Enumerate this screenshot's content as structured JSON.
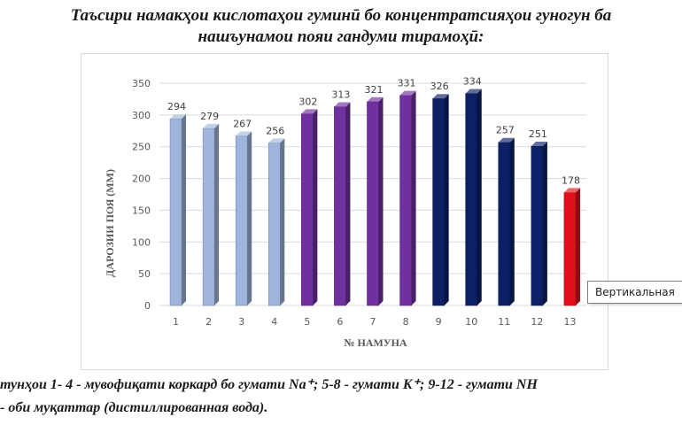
{
  "page": {
    "title_line1": "Таъсири намакҳои кислотаҳои гуминӣ бо концентратсияҳои гуногун ба",
    "title_line2": "нашъунамои пояи гандуми тирамоҳӣ:",
    "caption_line1": "тунҳои 1- 4 - мувофиқати коркард бо гумати Na⁺; 5-8 - гумати K⁺; 9-12 - гумати NH",
    "caption_line2": "- оби муқаттар (дистиллированная вода).",
    "tooltip": "Вертикальная"
  },
  "chart_data": {
    "type": "bar",
    "categories": [
      "1",
      "2",
      "3",
      "4",
      "5",
      "6",
      "7",
      "8",
      "9",
      "10",
      "11",
      "12",
      "13"
    ],
    "values": [
      294,
      279,
      267,
      256,
      302,
      313,
      321,
      331,
      326,
      334,
      257,
      251,
      178
    ],
    "data_labels": [
      "294",
      "279",
      "267",
      "256",
      "302",
      "313",
      "321",
      "331",
      "326",
      "334",
      "257",
      "251",
      "178"
    ],
    "bar_colors": [
      "#9fb5dc",
      "#9fb5dc",
      "#9fb5dc",
      "#9fb5dc",
      "#7030a0",
      "#7030a0",
      "#7030a0",
      "#7030a0",
      "#0d1f66",
      "#0d1f66",
      "#0d1f66",
      "#0d1f66",
      "#e0101a"
    ],
    "ylabel": "ДАРОЗИИ ПОЯ (ММ)",
    "xlabel": "№ НАМУНА",
    "ylim": [
      0,
      350
    ],
    "yticks": [
      0,
      50,
      100,
      150,
      200,
      250,
      300,
      350
    ],
    "ytick_labels": [
      "0",
      "50",
      "100",
      "150",
      "200",
      "250",
      "300",
      "350"
    ],
    "grid": true,
    "legend": "none",
    "style": "3d-column"
  }
}
